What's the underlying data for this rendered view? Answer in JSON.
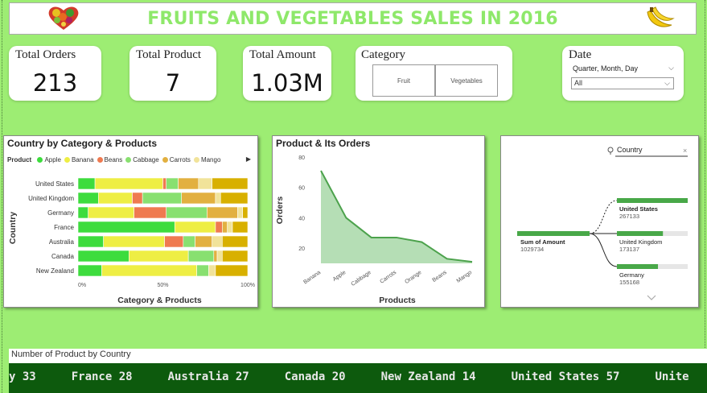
{
  "header": {
    "title": "FRUITS AND VEGETABLES SALES IN  2016",
    "left_logo": "heart-vegetables-icon",
    "right_logo": "bananas-icon"
  },
  "kpis": [
    {
      "label": "Total Orders",
      "value": "213"
    },
    {
      "label": "Total Product",
      "value": "7"
    },
    {
      "label": "Total Amount",
      "value": "1.03M"
    }
  ],
  "category_slicer": {
    "label": "Category",
    "options": [
      "Fruit",
      "Vegetables"
    ]
  },
  "date_slicer": {
    "label": "Date",
    "level": "Quarter, Month, Day",
    "value": "All"
  },
  "colors": {
    "accent": "#8ee86a",
    "apple": "#3ddc3d",
    "banana": "#eeee44",
    "beans": "#ef7a50",
    "cabbage": "#88e070",
    "carrots": "#e2b040",
    "mango": "#f1e39a",
    "other": "#d8b000",
    "area": "#a8d8a8",
    "line": "#4ca24c",
    "decomp_bar": "#48a848",
    "ticker_bg": "#0d5a0d"
  },
  "country_chart": {
    "title": "Country by Category & Products",
    "legend_title": "Product",
    "chart_data": {
      "type": "bar",
      "orientation": "horizontal-stacked-100",
      "categories": [
        "United States",
        "United Kingdom",
        "Germany",
        "France",
        "Australia",
        "Canada",
        "New Zealand"
      ],
      "series": [
        {
          "name": "Apple",
          "values": [
            10,
            12,
            6,
            57,
            15,
            30,
            14
          ]
        },
        {
          "name": "Banana",
          "values": [
            40,
            20,
            27,
            24,
            36,
            35,
            56
          ]
        },
        {
          "name": "Beans",
          "values": [
            2,
            6,
            19,
            4,
            11,
            0,
            0
          ]
        },
        {
          "name": "Cabbage",
          "values": [
            7,
            23,
            24,
            0,
            7,
            15,
            7
          ]
        },
        {
          "name": "Carrots",
          "values": [
            12,
            20,
            18,
            3,
            10,
            2,
            0
          ]
        },
        {
          "name": "Mango",
          "values": [
            8,
            3,
            3,
            3,
            6,
            3,
            4
          ]
        },
        {
          "name": "",
          "values": [
            21,
            16,
            3,
            9,
            15,
            15,
            19
          ]
        }
      ],
      "x_ticks": [
        "0%",
        "50%",
        "100%"
      ],
      "xlabel": "Category & Products",
      "ylabel": "Country",
      "xlim": [
        0,
        100
      ],
      "legend": "top"
    }
  },
  "orders_chart": {
    "title": "Product & Its Orders",
    "chart_data": {
      "type": "area",
      "categories": [
        "Banana",
        "Apple",
        "Cabbage",
        "Carrots",
        "Orange",
        "Beans",
        "Mango"
      ],
      "values": [
        71,
        40,
        27,
        27,
        24,
        13,
        11
      ],
      "y_ticks": [
        20,
        40,
        60,
        80
      ],
      "ylim": [
        10,
        80
      ],
      "xlabel": "Products",
      "ylabel": "Orders",
      "grid": false
    }
  },
  "decomp": {
    "search_value": "Country",
    "root_label": "Sum of Amount",
    "root_value": "1029734",
    "nodes": [
      {
        "label": "United States",
        "value": "267133",
        "fraction": 1.0
      },
      {
        "label": "United Kingdom",
        "value": "173137",
        "fraction": 0.65
      },
      {
        "label": "Germany",
        "value": "155168",
        "fraction": 0.58
      }
    ]
  },
  "ticker": {
    "label": "Number of Product by Country",
    "items": [
      "y 33",
      "France 28",
      "Australia 27",
      "Canada 20",
      "New Zealand 14",
      "United States 57",
      "Unite"
    ]
  }
}
